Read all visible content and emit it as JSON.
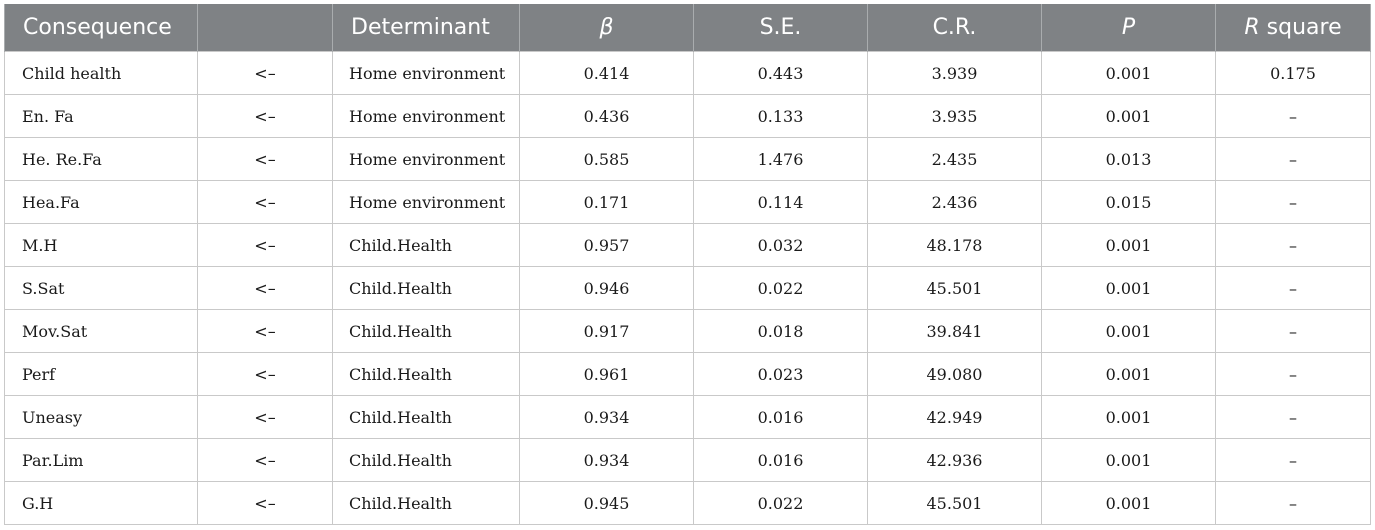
{
  "table": {
    "headers": {
      "consequence": "Consequence",
      "arrow": "",
      "determinant": "Determinant",
      "beta": "β",
      "se": "S.E.",
      "cr": "C.R.",
      "p": "P",
      "r_square_italic": "R",
      "r_square_rest": " square"
    },
    "rows": [
      {
        "consequence": "Child health",
        "arrow": "<–",
        "determinant": "Home environment",
        "beta": "0.414",
        "se": "0.443",
        "cr": "3.939",
        "p": "0.001",
        "r_square": "0.175"
      },
      {
        "consequence": "En. Fa",
        "arrow": "<–",
        "determinant": "Home environment",
        "beta": "0.436",
        "se": "0.133",
        "cr": "3.935",
        "p": "0.001",
        "r_square": "–"
      },
      {
        "consequence": "He. Re.Fa",
        "arrow": "<–",
        "determinant": "Home environment",
        "beta": "0.585",
        "se": "1.476",
        "cr": "2.435",
        "p": "0.013",
        "r_square": "–"
      },
      {
        "consequence": "Hea.Fa",
        "arrow": "<–",
        "determinant": "Home environment",
        "beta": "0.171",
        "se": "0.114",
        "cr": "2.436",
        "p": "0.015",
        "r_square": "–"
      },
      {
        "consequence": "M.H",
        "arrow": "<–",
        "determinant": "Child.Health",
        "beta": "0.957",
        "se": "0.032",
        "cr": "48.178",
        "p": "0.001",
        "r_square": "–"
      },
      {
        "consequence": "S.Sat",
        "arrow": "<–",
        "determinant": "Child.Health",
        "beta": "0.946",
        "se": "0.022",
        "cr": "45.501",
        "p": "0.001",
        "r_square": "–"
      },
      {
        "consequence": "Mov.Sat",
        "arrow": "<–",
        "determinant": "Child.Health",
        "beta": "0.917",
        "se": "0.018",
        "cr": "39.841",
        "p": "0.001",
        "r_square": "–"
      },
      {
        "consequence": "Perf",
        "arrow": "<–",
        "determinant": "Child.Health",
        "beta": "0.961",
        "se": "0.023",
        "cr": "49.080",
        "p": "0.001",
        "r_square": "–"
      },
      {
        "consequence": "Uneasy",
        "arrow": "<–",
        "determinant": "Child.Health",
        "beta": "0.934",
        "se": "0.016",
        "cr": "42.949",
        "p": "0.001",
        "r_square": "–"
      },
      {
        "consequence": "Par.Lim",
        "arrow": "<–",
        "determinant": "Child.Health",
        "beta": "0.934",
        "se": "0.016",
        "cr": "42.936",
        "p": "0.001",
        "r_square": "–"
      },
      {
        "consequence": "G.H",
        "arrow": "<–",
        "determinant": "Child.Health",
        "beta": "0.945",
        "se": "0.022",
        "cr": "45.501",
        "p": "0.001",
        "r_square": "–"
      }
    ]
  },
  "colors": {
    "header_bg": "#7f8285",
    "header_text": "#ffffff",
    "grid_line": "#c9c9c9"
  }
}
